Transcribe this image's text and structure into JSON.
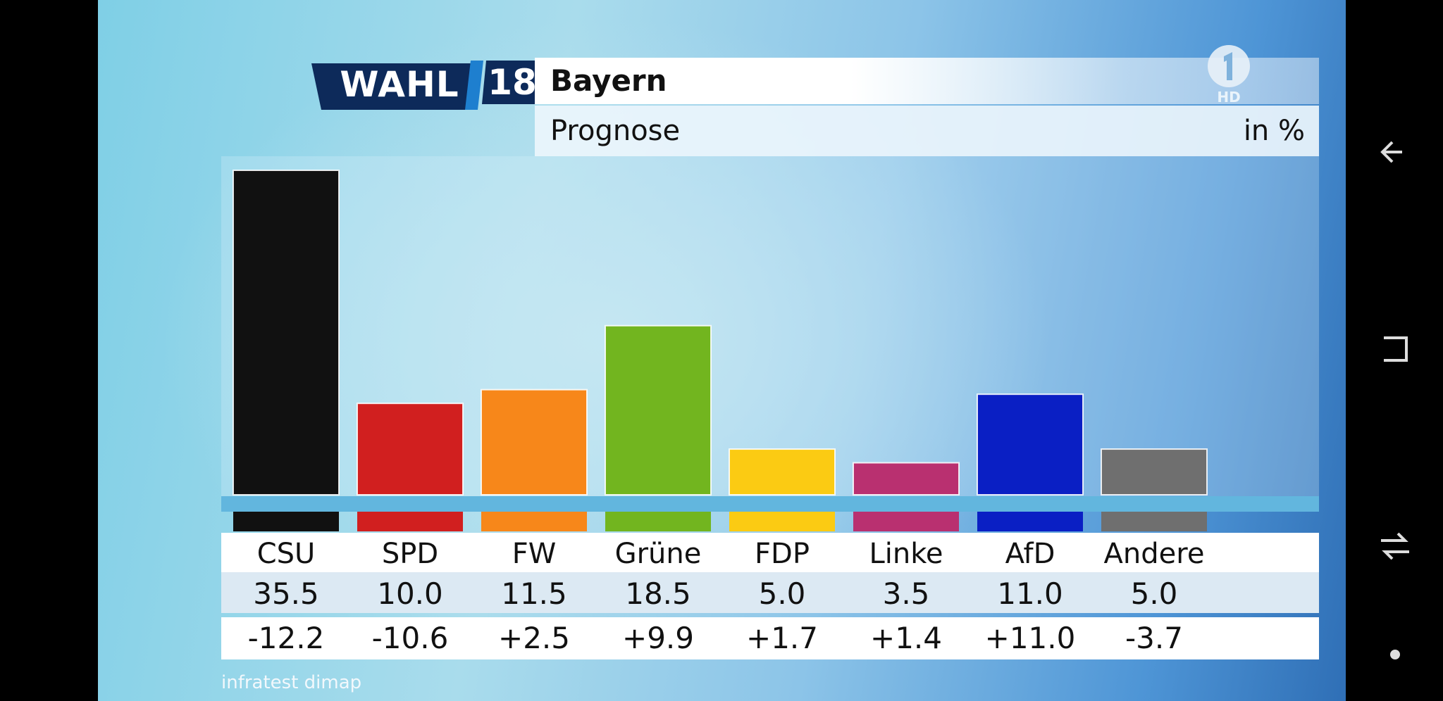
{
  "header": {
    "brand_wahl": "WAHL",
    "brand_year": "18",
    "title": "Bayern",
    "subtitle": "Prognose",
    "unit": "in %",
    "channel_badge": "HD",
    "source": "infratest dimap"
  },
  "colors": {
    "brand_dark": "#0d2a5a",
    "brand_light": "#1e7fcf"
  },
  "chart_data": {
    "type": "bar",
    "title": "Bayern",
    "subtitle": "Prognose",
    "ylabel": "in %",
    "ylim": [
      0,
      35.5
    ],
    "grid": false,
    "categories": [
      "CSU",
      "SPD",
      "FW",
      "Grüne",
      "FDP",
      "Linke",
      "AfD",
      "Andere"
    ],
    "values": [
      35.5,
      10.0,
      11.5,
      18.5,
      5.0,
      3.5,
      11.0,
      5.0
    ],
    "value_labels": [
      "35.5",
      "10.0",
      "11.5",
      "18.5",
      "5.0",
      "3.5",
      "11.0",
      "5.0"
    ],
    "changes": [
      "-12.2",
      "-10.6",
      "+2.5",
      "+9.9",
      "+1.7",
      "+1.4",
      "+11.0",
      "-3.7"
    ],
    "colors": [
      "#111111",
      "#d11f1f",
      "#f7871a",
      "#72b51f",
      "#fbcb13",
      "#b93070",
      "#0a1fc4",
      "#6f6f6f"
    ]
  },
  "navbar": {
    "icons": [
      "back-icon",
      "recents-icon",
      "home-icon",
      "assistant-icon"
    ]
  }
}
